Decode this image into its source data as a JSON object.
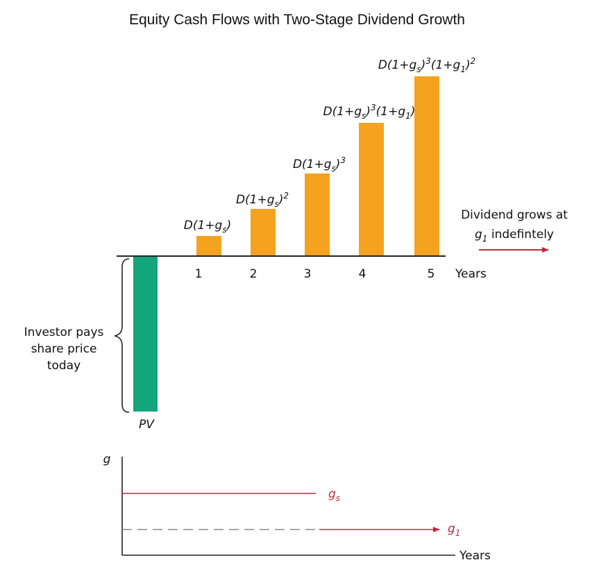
{
  "title": "Equity Cash Flows with Two-Stage Dividend Growth",
  "colors": {
    "dividend_bar": "#f5a21f",
    "pv_bar": "#13a57b",
    "growth_line": "#c0293a",
    "axis": "#222222",
    "dashed": "#888888"
  },
  "top_chart": {
    "years_label": "Years",
    "years": [
      "1",
      "2",
      "3",
      "4",
      "5"
    ],
    "bars": [
      {
        "year": "1",
        "label": {
          "base": "D(1+g",
          "sub": "s",
          "close": ")",
          "pow1": "",
          "mid": "",
          "sub2": "",
          "end": "",
          "pow2": ""
        }
      },
      {
        "year": "2",
        "label": {
          "base": "D(1+g",
          "sub": "s",
          "close": ")",
          "pow1": "2",
          "mid": "",
          "sub2": "",
          "end": "",
          "pow2": ""
        }
      },
      {
        "year": "3",
        "label": {
          "base": "D(1+g",
          "sub": "s",
          "close": ")",
          "pow1": "3",
          "mid": "",
          "sub2": "",
          "end": "",
          "pow2": ""
        }
      },
      {
        "year": "4",
        "label": {
          "base": "D(1+g",
          "sub": "s",
          "close": ")",
          "pow1": "3",
          "mid": "(1+g",
          "sub2": "1",
          "end": ")",
          "pow2": ""
        }
      },
      {
        "year": "5",
        "label": {
          "base": "D(1+g",
          "sub": "s",
          "close": ")",
          "pow1": "3",
          "mid": "(1+g",
          "sub2": "1",
          "end": ")",
          "pow2": "2"
        }
      }
    ],
    "pv_label": "PV",
    "investor_note": [
      "Investor pays",
      "share price",
      "today"
    ],
    "growth_note": {
      "line1": "Dividend grows at",
      "g": "g",
      "g_sub": "1",
      "rest": " indefintely"
    }
  },
  "bottom_chart": {
    "y_label": "g",
    "x_label": "Years",
    "gs_label": {
      "g": "g",
      "sub": "s"
    },
    "g1_label": {
      "g": "g",
      "sub": "1"
    }
  }
}
